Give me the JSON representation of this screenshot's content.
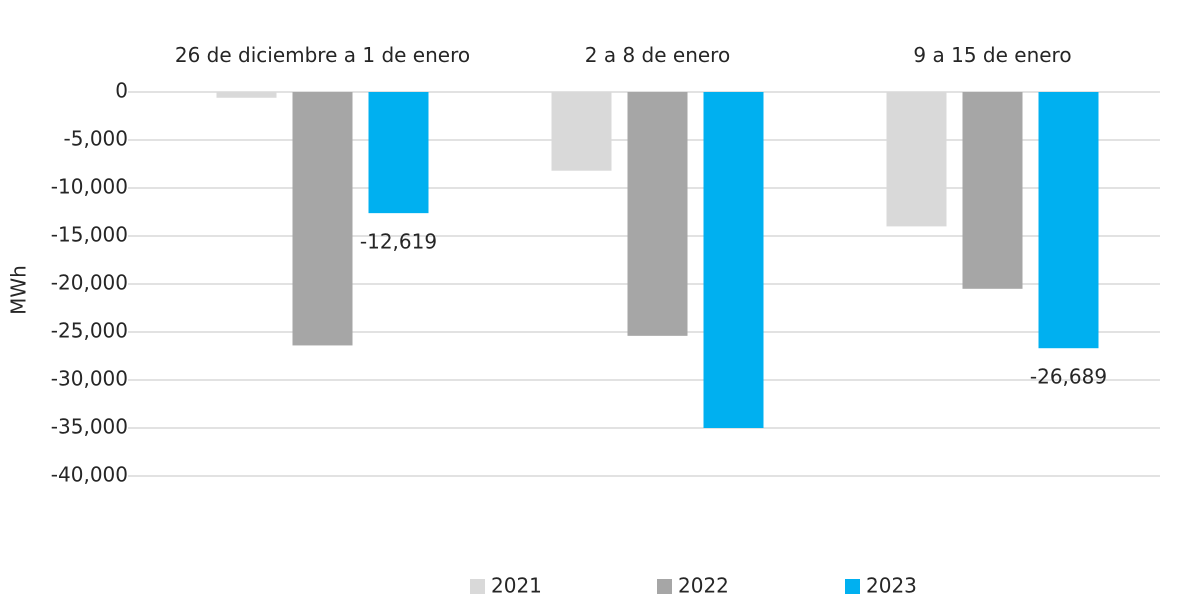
{
  "chart_data": {
    "type": "bar",
    "categories": [
      "26 de diciembre a 1 de enero",
      "2 a 8 de enero",
      "9 a 15 de enero"
    ],
    "series": [
      {
        "name": "2021",
        "color": "#d9d9d9",
        "values": [
          -600,
          -8200,
          -14000
        ]
      },
      {
        "name": "2022",
        "color": "#a6a6a6",
        "values": [
          -26400,
          -25400,
          -20500
        ]
      },
      {
        "name": "2023",
        "color": "#00b0f0",
        "values": [
          -12619,
          -35000,
          -26689
        ],
        "value_labels": [
          "-12,619",
          null,
          "-26,689"
        ]
      }
    ],
    "y_label": "MWh",
    "ylim": [
      -40000,
      0
    ],
    "yticks": [
      0,
      {
        "value": -5000,
        "label": "-5,000"
      },
      {
        "value": -10000,
        "label": "-10,000"
      },
      {
        "value": -15000,
        "label": "-15,000"
      },
      {
        "value": -20000,
        "label": "-20,000"
      },
      {
        "value": -25000,
        "label": "-25,000"
      },
      {
        "value": -30000,
        "label": "-30,000"
      },
      {
        "value": -35000,
        "label": "-35,000"
      },
      {
        "value": -40000,
        "label": "-40,000"
      }
    ],
    "grid": true,
    "legend": "bottom"
  }
}
